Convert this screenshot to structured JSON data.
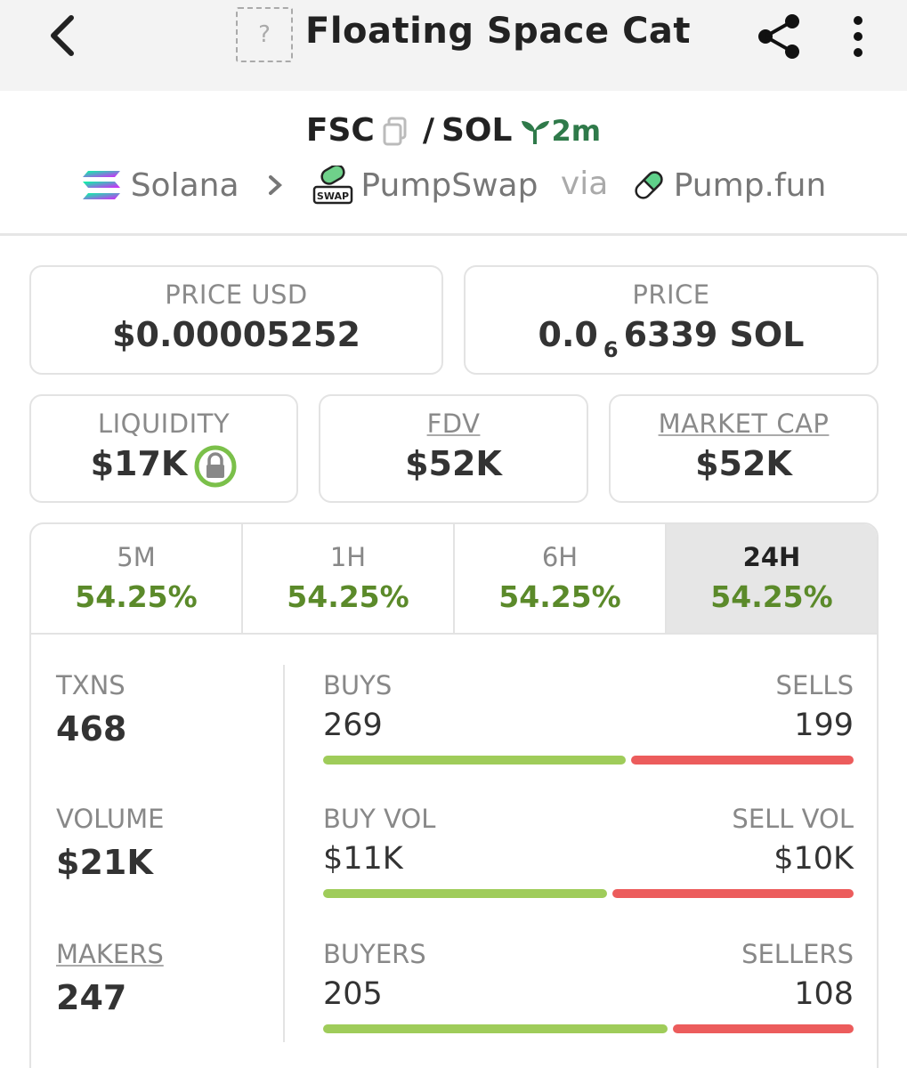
{
  "header": {
    "title": "Floating Space Cat",
    "token_placeholder": "?"
  },
  "pair": {
    "base": "FSC",
    "separator": "/",
    "quote": "SOL",
    "age": "2m"
  },
  "route": {
    "chain": "Solana",
    "dex": "PumpSwap",
    "dex_badge": "SWAP",
    "via": "via",
    "launchpad": "Pump.fun"
  },
  "prices": {
    "price_usd_label": "PRICE USD",
    "price_usd": "$0.00005252",
    "price_label": "PRICE",
    "price_prefix": "0.0",
    "price_zeros": "6",
    "price_rest": "6339 SOL"
  },
  "stats": {
    "liquidity_label": "LIQUIDITY",
    "liquidity": "$17K",
    "fdv_label": "FDV",
    "fdv": "$52K",
    "mcap_label": "MARKET CAP",
    "mcap": "$52K"
  },
  "tabs": [
    {
      "label": "5M",
      "change": "54.25%"
    },
    {
      "label": "1H",
      "change": "54.25%"
    },
    {
      "label": "6H",
      "change": "54.25%"
    },
    {
      "label": "24H",
      "change": "54.25%"
    }
  ],
  "active_tab": "24H",
  "metrics": {
    "txns_label": "TXNS",
    "txns": "468",
    "volume_label": "VOLUME",
    "volume": "$21K",
    "makers_label": "MAKERS",
    "makers": "247"
  },
  "splits": {
    "buys_label": "BUYS",
    "buys": "269",
    "sells_label": "SELLS",
    "sells": "199",
    "buy_vol_label": "BUY VOL",
    "buy_vol": "$11K",
    "sell_vol_label": "SELL VOL",
    "sell_vol": "$10K",
    "buyers_label": "BUYERS",
    "buyers": "205",
    "sellers_label": "SELLERS",
    "sellers": "108"
  },
  "bar_ratios": {
    "txns_buy_share": 0.575,
    "volume_buy_share": 0.54,
    "makers_buy_share": 0.655
  },
  "colors": {
    "positive": "#5b8a2a",
    "buy_bar": "#9fcc5a",
    "sell_bar": "#ec5c5c",
    "age": "#2f7a4a"
  }
}
